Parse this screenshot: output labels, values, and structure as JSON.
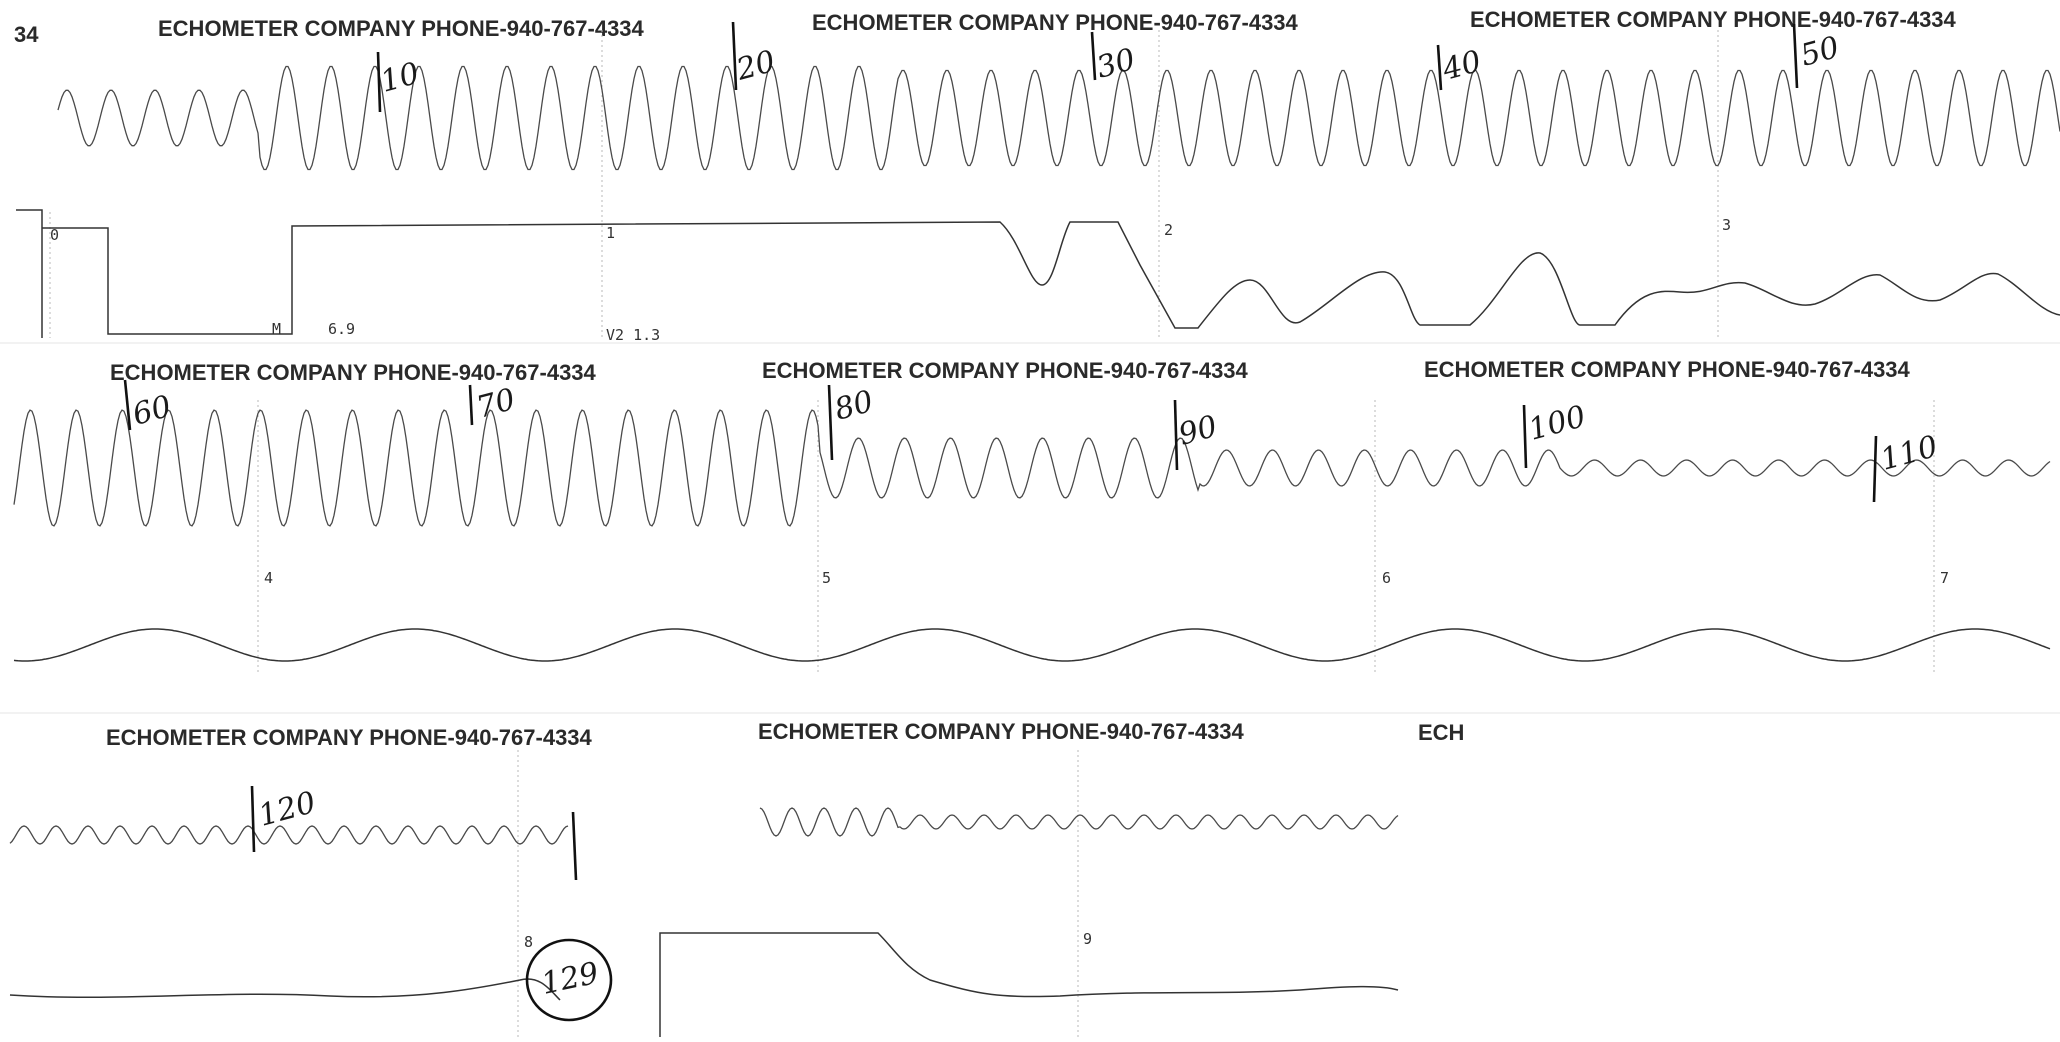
{
  "corner_label": "34",
  "header_text": "ECHOMETER COMPANY  PHONE-940-767-4334",
  "truncated_header": "ECH",
  "axis_ticks": [
    "0",
    "1",
    "2",
    "3",
    "4",
    "5",
    "6",
    "7",
    "8",
    "9"
  ],
  "annotations": {
    "m_label": "M",
    "m_value": "6.9",
    "v_label": "V2 1.3"
  },
  "joint_counts": [
    "10",
    "20",
    "30",
    "40",
    "50",
    "60",
    "70",
    "80",
    "90",
    "100",
    "110",
    "120"
  ],
  "circled_count": "129",
  "colors": {
    "trace": "#4a4a4a",
    "ink": "#1a1a1a",
    "paper": "#ffffff"
  }
}
